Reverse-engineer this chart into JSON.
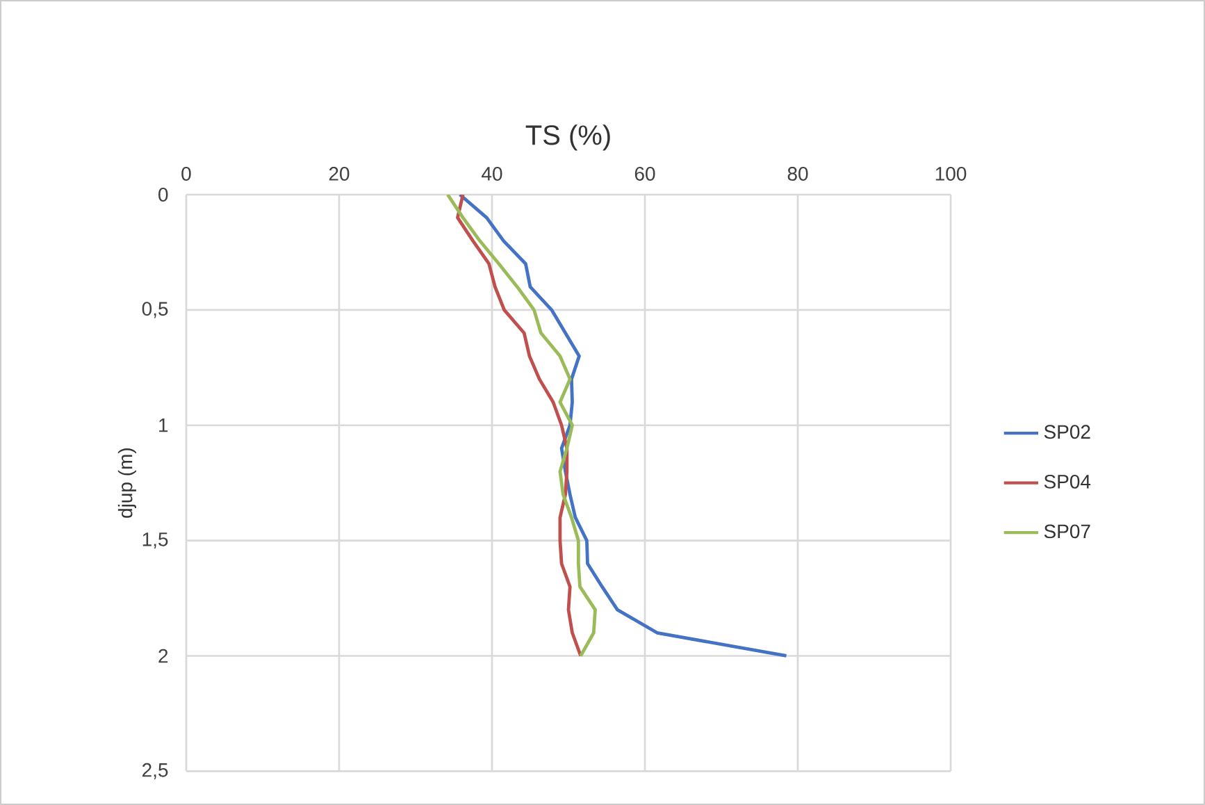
{
  "chart_data": {
    "type": "line",
    "xlabel": "TS (%)",
    "ylabel": "djup (m)",
    "xlim": [
      0,
      100
    ],
    "xticks": [
      0,
      20,
      40,
      60,
      80,
      100
    ],
    "ylim": [
      2.5,
      0
    ],
    "yticks": [
      0,
      {
        "value": 0.5,
        "label": "0,5"
      },
      1,
      {
        "value": 1.5,
        "label": "1,5"
      },
      2,
      {
        "value": 2.5,
        "label": "2,5"
      }
    ],
    "grid": true,
    "legend": "right",
    "marker": "none",
    "line_style": "solid",
    "series": [
      {
        "name": "SP02",
        "color": "#4472c4",
        "x": [
          35.8,
          39.3,
          41.5,
          44.4,
          45,
          47.8,
          49.6,
          51.4,
          50.4,
          50.5,
          50.2,
          49.1,
          49.6,
          50.2,
          50.9,
          52.4,
          52.5,
          54.4,
          56.4,
          61.6,
          78.5
        ],
        "values": [
          0,
          0.1,
          0.2,
          0.3,
          0.4,
          0.5,
          0.6,
          0.7,
          0.8,
          0.9,
          1.0,
          1.1,
          1.2,
          1.3,
          1.4,
          1.5,
          1.6,
          1.7,
          1.8,
          1.9,
          2.0
        ]
      },
      {
        "name": "SP04",
        "color": "#c0504d",
        "x": [
          36.2,
          35.5,
          37.5,
          39.6,
          40.4,
          41.6,
          44.2,
          44.9,
          46.2,
          48,
          49.1,
          49.8,
          49.8,
          49.6,
          48.9,
          48.9,
          49.1,
          50.2,
          50,
          50.5,
          51.6
        ],
        "values": [
          0,
          0.1,
          0.2,
          0.3,
          0.4,
          0.5,
          0.6,
          0.7,
          0.8,
          0.9,
          1.0,
          1.1,
          1.2,
          1.3,
          1.4,
          1.5,
          1.6,
          1.7,
          1.8,
          1.9,
          2.0
        ]
      },
      {
        "name": "SP07",
        "color": "#9bbb59",
        "x": [
          34.2,
          36.2,
          38.4,
          40.9,
          43.3,
          45.5,
          46.4,
          48.9,
          50.2,
          48.9,
          50.5,
          49.8,
          48.9,
          49.3,
          50.4,
          51.3,
          51.3,
          51.5,
          53.5,
          53.3,
          51.6
        ],
        "values": [
          0,
          0.1,
          0.2,
          0.3,
          0.4,
          0.5,
          0.6,
          0.7,
          0.8,
          0.9,
          1.0,
          1.1,
          1.2,
          1.3,
          1.4,
          1.5,
          1.6,
          1.7,
          1.8,
          1.9,
          2.0
        ]
      }
    ]
  }
}
